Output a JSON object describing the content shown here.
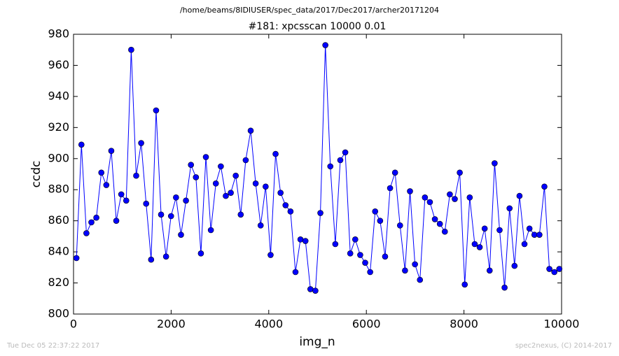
{
  "chart_data": {
    "type": "line",
    "suptitle": "/home/beams/8IDIUSER/spec_data/2017/Dec2017/archer20171204",
    "title": "#181: xpcsscan 10000 0.01",
    "xlabel": "img_n",
    "ylabel": "ccdc",
    "footer_left": "Tue Dec 05 22:37:22 2017",
    "footer_right": "spec2nexus, (C) 2014-2017",
    "xlim": [
      0,
      10000
    ],
    "xticks": [
      0,
      2000,
      4000,
      6000,
      8000,
      10000
    ],
    "ylim": [
      800,
      980
    ],
    "yticks": [
      800,
      820,
      840,
      860,
      880,
      900,
      920,
      940,
      960,
      980
    ],
    "x": [
      60,
      162,
      264,
      366,
      468,
      570,
      672,
      774,
      876,
      978,
      1080,
      1182,
      1284,
      1386,
      1488,
      1590,
      1692,
      1794,
      1896,
      1998,
      2100,
      2202,
      2304,
      2406,
      2508,
      2610,
      2712,
      2814,
      2916,
      3018,
      3120,
      3222,
      3324,
      3426,
      3528,
      3630,
      3732,
      3834,
      3936,
      4038,
      4140,
      4242,
      4344,
      4446,
      4548,
      4650,
      4752,
      4854,
      4956,
      5058,
      5160,
      5262,
      5364,
      5466,
      5568,
      5670,
      5772,
      5874,
      5976,
      6078,
      6180,
      6282,
      6384,
      6486,
      6588,
      6690,
      6792,
      6894,
      6996,
      7098,
      7200,
      7302,
      7404,
      7506,
      7608,
      7710,
      7812,
      7914,
      8016,
      8118,
      8220,
      8322,
      8424,
      8526,
      8628,
      8730,
      8832,
      8934,
      9036,
      9138,
      9240,
      9342,
      9444,
      9546,
      9648,
      9750,
      9852,
      9954
    ],
    "series": [
      {
        "color": "#0000ff",
        "values": [
          836,
          909,
          852,
          859,
          862,
          891,
          883,
          905,
          860,
          877,
          873,
          970,
          889,
          910,
          871,
          835,
          931,
          864,
          837,
          863,
          875,
          851,
          873,
          896,
          888,
          839,
          901,
          854,
          884,
          895,
          876,
          878,
          889,
          864,
          899,
          918,
          884,
          857,
          882,
          838,
          903,
          878,
          870,
          866,
          827,
          848,
          847,
          816,
          815,
          865,
          973,
          895,
          845,
          899,
          904,
          839,
          848,
          838,
          833,
          827,
          866,
          860,
          837,
          881,
          891,
          857,
          828,
          879,
          832,
          822,
          875,
          872,
          861,
          858,
          853,
          877,
          874,
          891,
          819,
          875,
          845,
          843,
          855,
          828,
          897,
          854,
          817,
          868,
          831,
          876,
          845,
          855,
          851,
          851,
          882,
          829,
          827,
          829
        ]
      }
    ]
  }
}
